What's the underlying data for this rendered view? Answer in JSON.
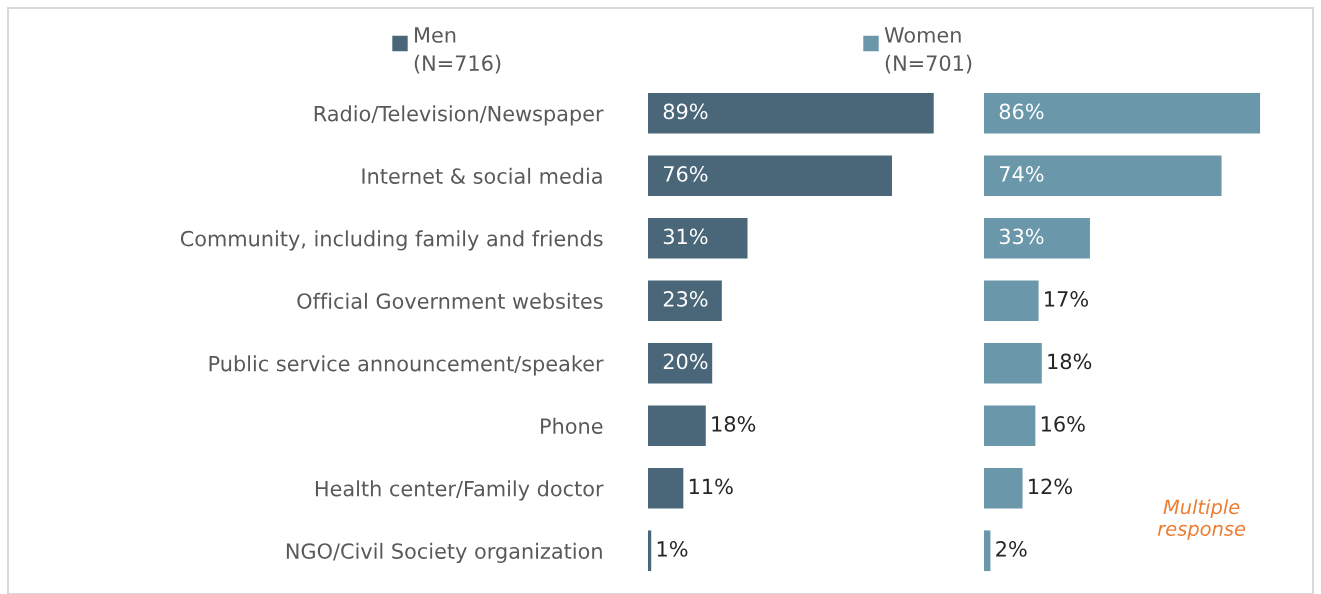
{
  "chart_data": [
    {
      "type": "bar",
      "orientation": "horizontal",
      "categories": [
        "Radio/Television/Newspaper",
        "Internet & social media",
        "Community, including family and friends",
        "Official Government websites",
        "Public service announcement/speaker",
        "Phone",
        "Health center/Family doctor",
        "NGO/Civil Society organization"
      ],
      "series": [
        {
          "name": "Men\n(N=716)",
          "color": "#4a6779",
          "values": [
            89,
            76,
            31,
            23,
            20,
            18,
            11,
            1
          ],
          "value_labels": [
            "89%",
            "76%",
            "31%",
            "23%",
            "20%",
            "18%",
            "11%",
            "1%"
          ]
        }
      ],
      "tick_labels": "y",
      "legend": "top"
    },
    {
      "type": "bar",
      "orientation": "horizontal",
      "categories": [
        null,
        null,
        null,
        null,
        null,
        null,
        null,
        null
      ],
      "series": [
        {
          "name": "Women\n(N=701)",
          "color": "#6a97aa",
          "values": [
            86,
            74,
            33,
            17,
            18,
            16,
            12,
            2
          ],
          "value_labels": [
            "86%",
            "74%",
            "33%",
            "17%",
            "18%",
            "16%",
            "12%",
            "2%"
          ]
        }
      ],
      "tick_labels": false,
      "legend": "top",
      "annotations": [
        "Multiple\nresponse"
      ]
    }
  ]
}
